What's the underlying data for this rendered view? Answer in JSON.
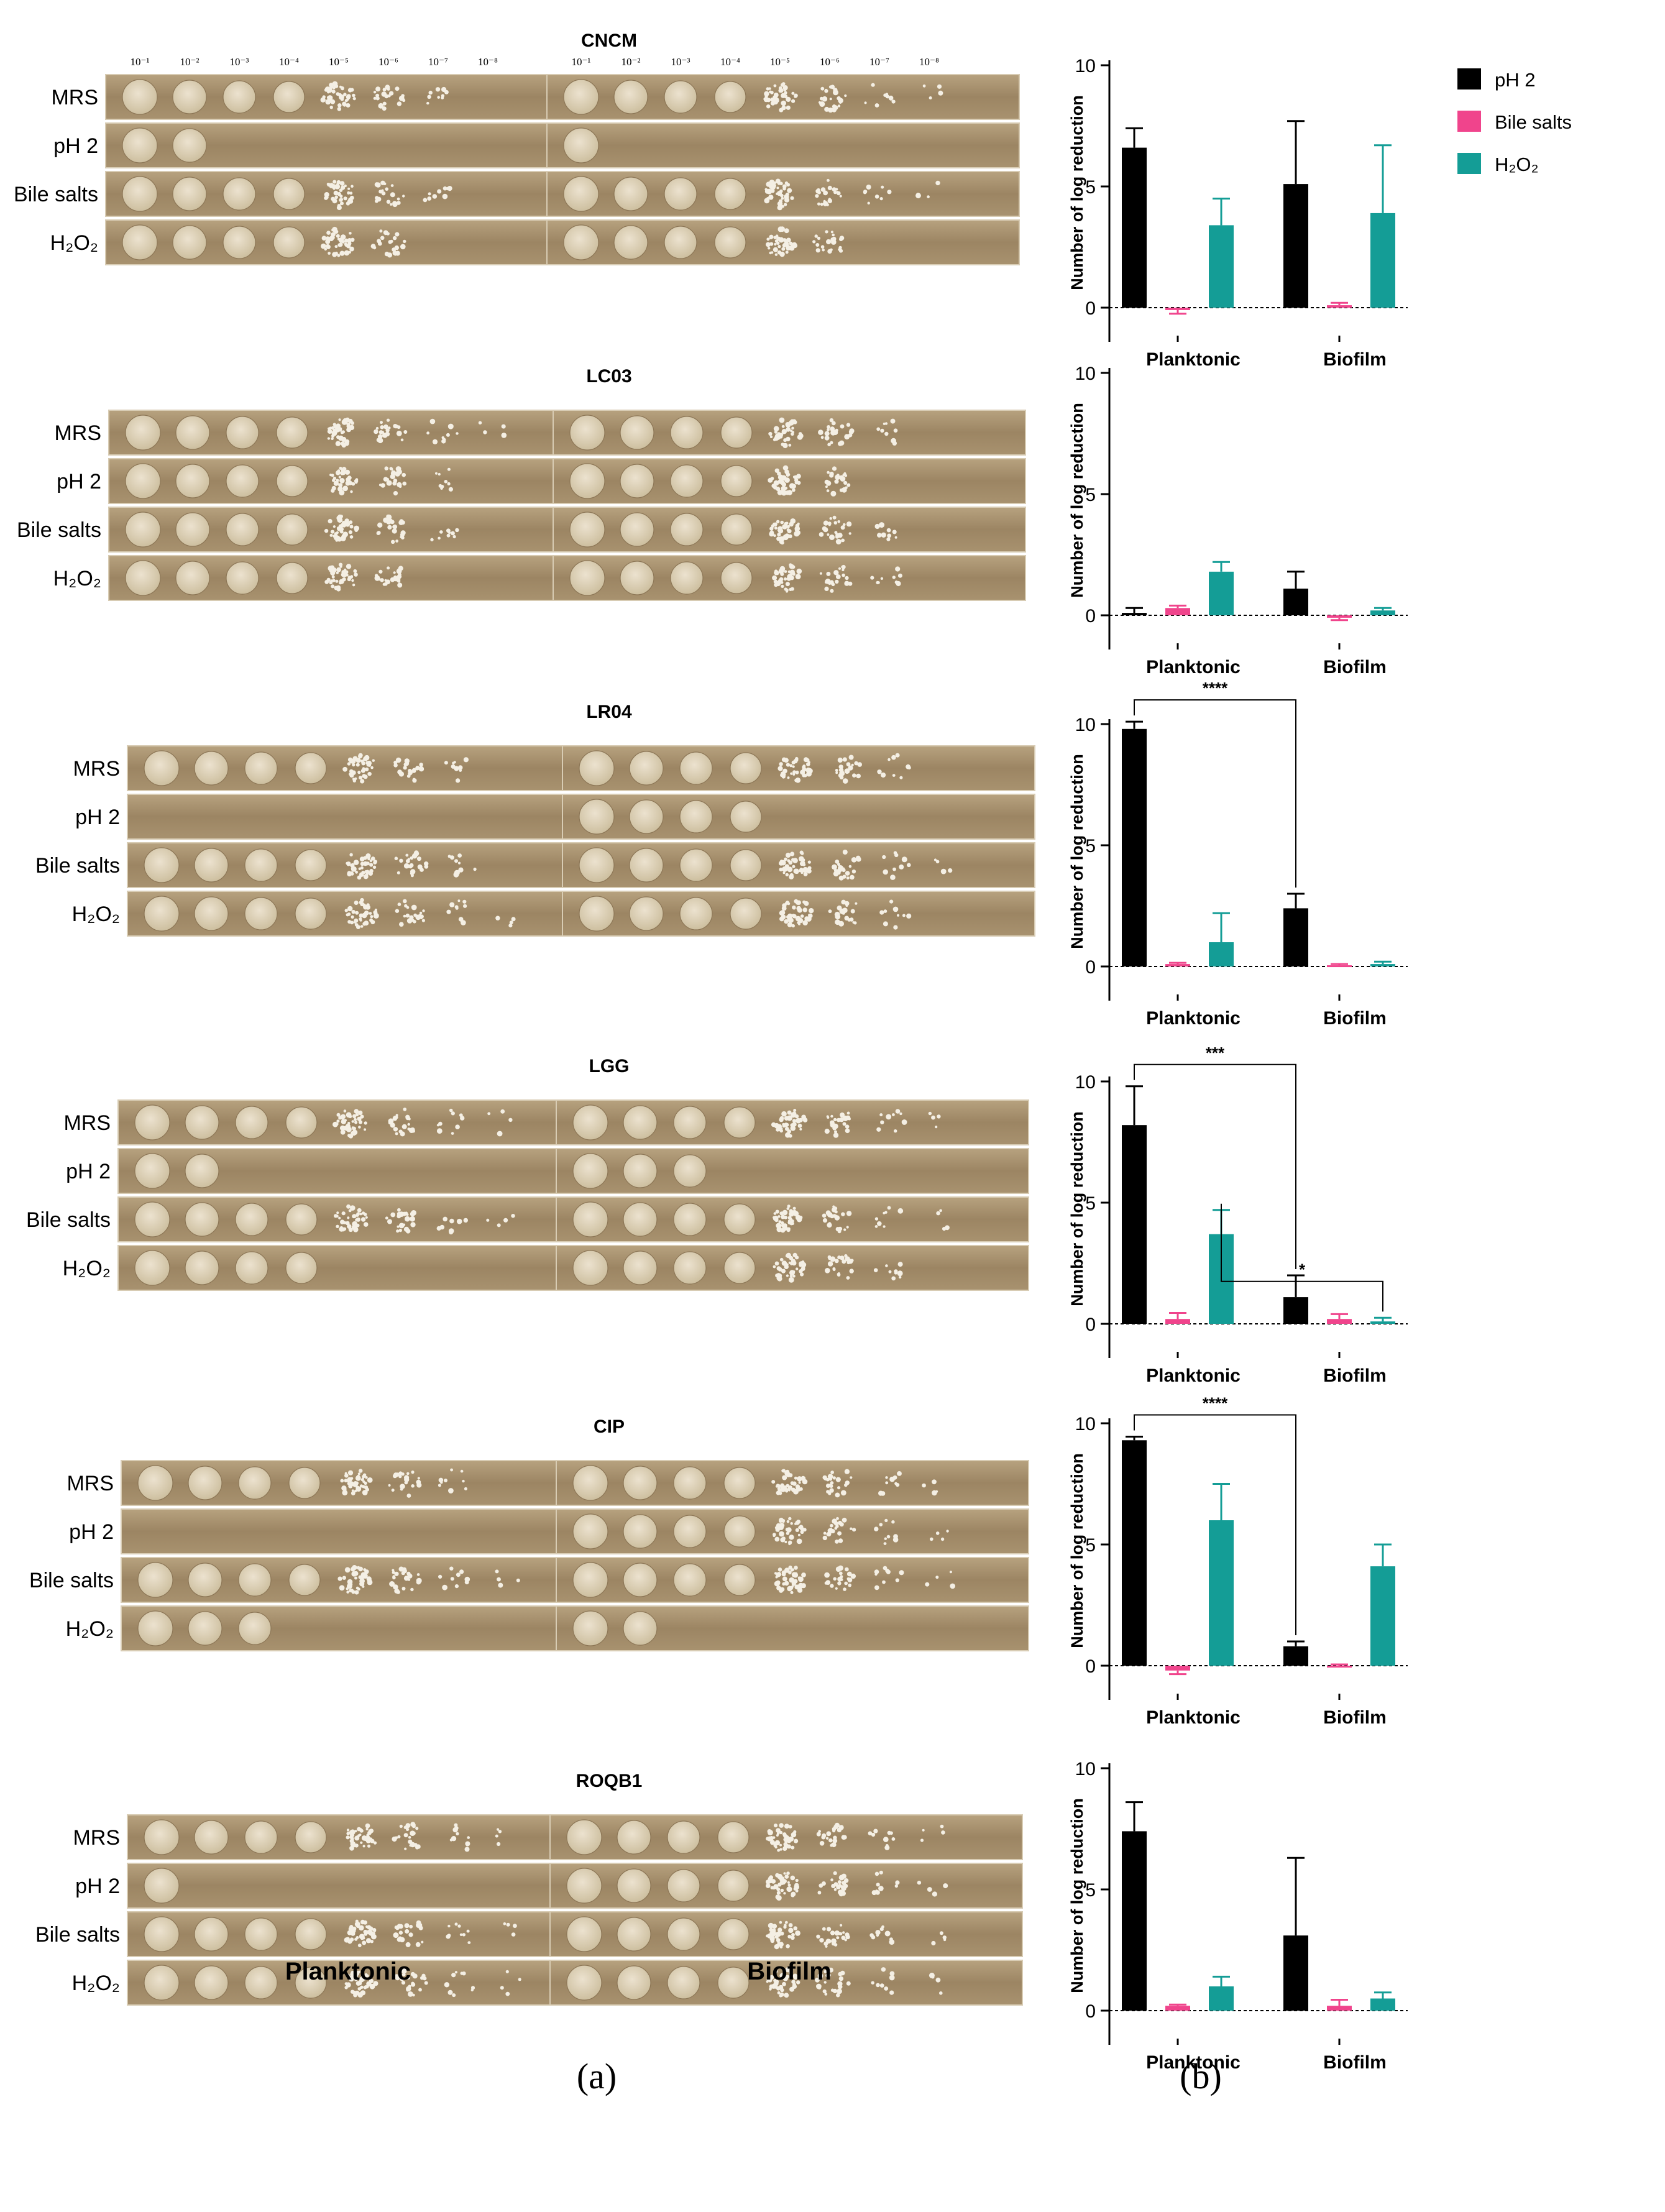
{
  "panel_labels": [
    "(a)",
    "(b)"
  ],
  "plates": {
    "dilutions": [
      "10⁻¹",
      "10⁻²",
      "10⁻³",
      "10⁻⁴",
      "10⁻⁵",
      "10⁻⁶",
      "10⁻⁷",
      "10⁻⁸"
    ],
    "row_labels": [
      "MRS",
      "pH 2",
      "Bile salts",
      "H₂O₂"
    ],
    "bottom_labels": [
      "Planktonic",
      "Biofilm"
    ],
    "strains": [
      {
        "name": "CNCM",
        "planktonic": [
          7,
          2,
          7,
          6
        ],
        "biofilm": [
          8,
          1,
          8,
          6
        ]
      },
      {
        "name": "LC03",
        "planktonic": [
          8,
          7,
          7,
          6
        ],
        "biofilm": [
          7,
          6,
          7,
          7
        ]
      },
      {
        "name": "LR04",
        "planktonic": [
          7,
          0,
          7,
          8
        ],
        "biofilm": [
          7,
          4,
          8,
          7
        ]
      },
      {
        "name": "LGG",
        "planktonic": [
          8,
          2,
          8,
          4
        ],
        "biofilm": [
          8,
          3,
          8,
          7
        ]
      },
      {
        "name": "CIP",
        "planktonic": [
          7,
          0,
          8,
          3
        ],
        "biofilm": [
          8,
          8,
          8,
          2
        ]
      },
      {
        "name": "ROQB1",
        "planktonic": [
          8,
          1,
          8,
          8
        ],
        "biofilm": [
          8,
          8,
          8,
          8
        ]
      }
    ]
  },
  "legend": {
    "items": [
      {
        "label": "pH 2",
        "color": "#000000"
      },
      {
        "label": "Bile salts",
        "color": "#f0448c"
      },
      {
        "label": "H₂O₂",
        "color": "#149d96"
      }
    ]
  },
  "chart_data": [
    {
      "type": "bar",
      "strain": "CNCM",
      "categories": [
        "Planktonic",
        "Biofilm"
      ],
      "ylabel": "Number of log reduction",
      "ylim": [
        0,
        10
      ],
      "yticks": [
        0,
        5,
        10
      ],
      "series": [
        {
          "name": "pH 2",
          "values": [
            6.6,
            5.1
          ],
          "errors": [
            0.8,
            2.6
          ]
        },
        {
          "name": "Bile salts",
          "values": [
            -0.1,
            0.1
          ],
          "errors": [
            0.15,
            0.1
          ]
        },
        {
          "name": "H₂O₂",
          "values": [
            3.4,
            3.9
          ],
          "errors": [
            1.1,
            2.8
          ]
        }
      ],
      "significance": []
    },
    {
      "type": "bar",
      "strain": "LC03",
      "categories": [
        "Planktonic",
        "Biofilm"
      ],
      "ylabel": "Number of log reduction",
      "ylim": [
        0,
        10
      ],
      "yticks": [
        0,
        5,
        10
      ],
      "series": [
        {
          "name": "pH 2",
          "values": [
            0.1,
            1.1
          ],
          "errors": [
            0.2,
            0.7
          ]
        },
        {
          "name": "Bile salts",
          "values": [
            0.3,
            -0.1
          ],
          "errors": [
            0.1,
            0.1
          ]
        },
        {
          "name": "H₂O₂",
          "values": [
            1.8,
            0.2
          ],
          "errors": [
            0.4,
            0.1
          ]
        }
      ],
      "significance": []
    },
    {
      "type": "bar",
      "strain": "LR04",
      "categories": [
        "Planktonic",
        "Biofilm"
      ],
      "ylabel": "Number of log reduction",
      "ylim": [
        0,
        10
      ],
      "yticks": [
        0,
        5,
        10
      ],
      "series": [
        {
          "name": "pH 2",
          "values": [
            9.8,
            2.4
          ],
          "errors": [
            0.3,
            0.6
          ]
        },
        {
          "name": "Bile salts",
          "values": [
            0.1,
            0.05
          ],
          "errors": [
            0.05,
            0.05
          ]
        },
        {
          "name": "H₂O₂",
          "values": [
            1.0,
            0.1
          ],
          "errors": [
            1.2,
            0.1
          ]
        }
      ],
      "significance": [
        {
          "label": "****",
          "from": [
            0,
            "pH 2"
          ],
          "to": [
            1,
            "pH 2"
          ]
        }
      ]
    },
    {
      "type": "bar",
      "strain": "LGG",
      "categories": [
        "Planktonic",
        "Biofilm"
      ],
      "ylabel": "Number of log reduction",
      "ylim": [
        0,
        10
      ],
      "yticks": [
        0,
        5,
        10
      ],
      "series": [
        {
          "name": "pH 2",
          "values": [
            8.2,
            1.1
          ],
          "errors": [
            1.6,
            0.9
          ]
        },
        {
          "name": "Bile salts",
          "values": [
            0.2,
            0.2
          ],
          "errors": [
            0.25,
            0.2
          ]
        },
        {
          "name": "H₂O₂",
          "values": [
            3.7,
            0.1
          ],
          "errors": [
            1.0,
            0.15
          ]
        }
      ],
      "significance": [
        {
          "label": "***",
          "from": [
            0,
            "pH 2"
          ],
          "to": [
            1,
            "pH 2"
          ]
        },
        {
          "label": "*",
          "from": [
            0,
            "H₂O₂"
          ],
          "to": [
            1,
            "H₂O₂"
          ]
        }
      ]
    },
    {
      "type": "bar",
      "strain": "CIP",
      "categories": [
        "Planktonic",
        "Biofilm"
      ],
      "ylabel": "Number of log reduction",
      "ylim": [
        0,
        10
      ],
      "yticks": [
        0,
        5,
        10
      ],
      "series": [
        {
          "name": "pH 2",
          "values": [
            9.3,
            0.8
          ],
          "errors": [
            0.15,
            0.2
          ]
        },
        {
          "name": "Bile salts",
          "values": [
            -0.2,
            0.0
          ],
          "errors": [
            0.15,
            0.05
          ]
        },
        {
          "name": "H₂O₂",
          "values": [
            6.0,
            4.1
          ],
          "errors": [
            1.5,
            0.9
          ]
        }
      ],
      "significance": [
        {
          "label": "****",
          "from": [
            0,
            "pH 2"
          ],
          "to": [
            1,
            "pH 2"
          ]
        }
      ]
    },
    {
      "type": "bar",
      "strain": "ROQB1",
      "categories": [
        "Planktonic",
        "Biofilm"
      ],
      "ylabel": "Number of log reduction",
      "ylim": [
        0,
        10
      ],
      "yticks": [
        0,
        5,
        10
      ],
      "series": [
        {
          "name": "pH 2",
          "values": [
            7.4,
            3.1
          ],
          "errors": [
            1.2,
            3.2
          ]
        },
        {
          "name": "Bile salts",
          "values": [
            0.2,
            0.2
          ],
          "errors": [
            0.05,
            0.25
          ]
        },
        {
          "name": "H₂O₂",
          "values": [
            1.0,
            0.5
          ],
          "errors": [
            0.4,
            0.25
          ]
        }
      ],
      "significance": []
    }
  ]
}
